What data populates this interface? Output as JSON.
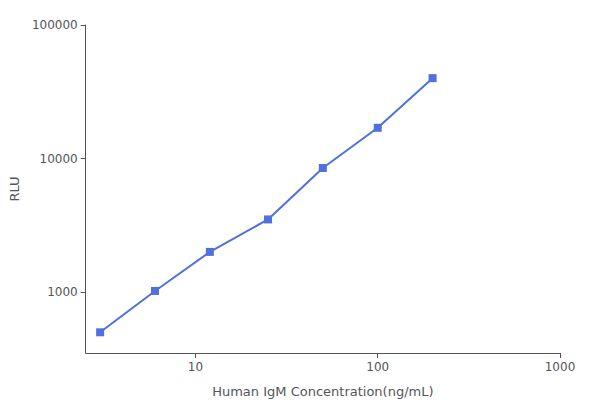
{
  "chart_data": {
    "type": "line",
    "x": [
      3,
      6,
      12,
      25,
      50,
      100,
      200
    ],
    "values": [
      500,
      1020,
      2000,
      3500,
      8500,
      17000,
      40000
    ],
    "xlabel": "Human IgM Concentration(ng/mL)",
    "ylabel": "RLU",
    "xlim": [
      2.5,
      1000
    ],
    "ylim": [
      350,
      100000
    ],
    "xticks": [
      10,
      100,
      1000
    ],
    "yticks": [
      1000,
      10000,
      100000
    ],
    "log": true,
    "grid": false,
    "marker": "square"
  }
}
